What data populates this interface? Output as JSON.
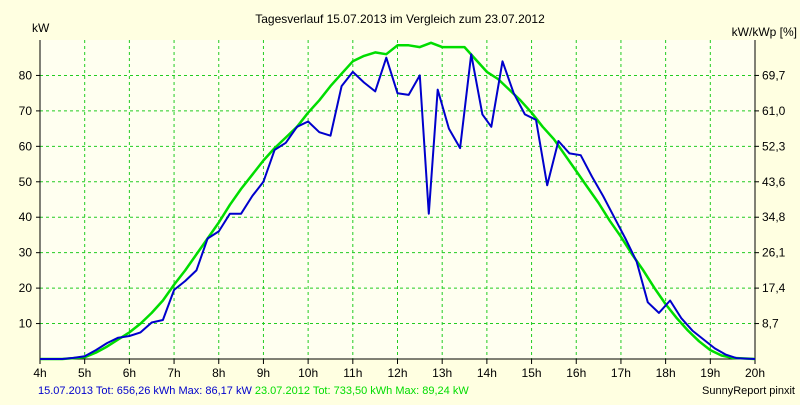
{
  "chart_data": {
    "type": "line",
    "title": "Tagesverlauf 15.07.2013 im Vergleich zum 23.07.2012",
    "ylabel_left": "kW",
    "ylabel_right": "kW/kWp [%]",
    "watermark": "SunnyReport pinxit",
    "xlim": [
      4,
      20
    ],
    "ylim": [
      0,
      90
    ],
    "x_ticks": [
      {
        "x": 4,
        "label": "4h"
      },
      {
        "x": 5,
        "label": "5h"
      },
      {
        "x": 6,
        "label": "6h"
      },
      {
        "x": 7,
        "label": "7h"
      },
      {
        "x": 8,
        "label": "8h"
      },
      {
        "x": 9,
        "label": "9h"
      },
      {
        "x": 10,
        "label": "10h"
      },
      {
        "x": 11,
        "label": "11h"
      },
      {
        "x": 12,
        "label": "12h"
      },
      {
        "x": 13,
        "label": "13h"
      },
      {
        "x": 14,
        "label": "14h"
      },
      {
        "x": 15,
        "label": "15h"
      },
      {
        "x": 16,
        "label": "16h"
      },
      {
        "x": 17,
        "label": "17h"
      },
      {
        "x": 18,
        "label": "18h"
      },
      {
        "x": 19,
        "label": "19h"
      },
      {
        "x": 20,
        "label": "20h"
      }
    ],
    "y_ticks_left": [
      {
        "y": 10,
        "label": "10"
      },
      {
        "y": 20,
        "label": "20"
      },
      {
        "y": 30,
        "label": "30"
      },
      {
        "y": 40,
        "label": "40"
      },
      {
        "y": 50,
        "label": "50"
      },
      {
        "y": 60,
        "label": "60"
      },
      {
        "y": 70,
        "label": "70"
      },
      {
        "y": 80,
        "label": "80"
      }
    ],
    "y_ticks_right": [
      {
        "y": 10,
        "label": "8,7"
      },
      {
        "y": 20,
        "label": "17,4"
      },
      {
        "y": 30,
        "label": "26,1"
      },
      {
        "y": 40,
        "label": "34,8"
      },
      {
        "y": 50,
        "label": "43,6"
      },
      {
        "y": 60,
        "label": "52,3"
      },
      {
        "y": 70,
        "label": "61,0"
      },
      {
        "y": 80,
        "label": "69,7"
      }
    ],
    "grid": true,
    "colors": {
      "background": "#ffffe1",
      "plot_background": "#fffff0",
      "grid": "#22cc22",
      "axis": "#000000"
    },
    "series": [
      {
        "name": "15.07.2013",
        "stats": "Tot: 656,26 kWh Max: 86,17 kW",
        "color": "#0000cc",
        "points": [
          [
            4.0,
            0
          ],
          [
            4.5,
            0
          ],
          [
            4.75,
            0.3
          ],
          [
            5.0,
            0.8
          ],
          [
            5.25,
            2.5
          ],
          [
            5.5,
            4.5
          ],
          [
            5.75,
            6
          ],
          [
            6.0,
            6.5
          ],
          [
            6.25,
            7.5
          ],
          [
            6.5,
            10.3
          ],
          [
            6.75,
            11
          ],
          [
            7.0,
            19.5
          ],
          [
            7.25,
            22
          ],
          [
            7.5,
            25
          ],
          [
            7.75,
            34
          ],
          [
            8.0,
            36
          ],
          [
            8.25,
            41
          ],
          [
            8.5,
            41
          ],
          [
            8.75,
            46
          ],
          [
            9.0,
            50
          ],
          [
            9.25,
            59
          ],
          [
            9.5,
            61
          ],
          [
            9.75,
            65.5
          ],
          [
            10.0,
            67
          ],
          [
            10.25,
            64
          ],
          [
            10.5,
            63
          ],
          [
            10.75,
            77
          ],
          [
            11.0,
            81
          ],
          [
            11.25,
            78
          ],
          [
            11.5,
            75.5
          ],
          [
            11.75,
            85
          ],
          [
            12.0,
            75
          ],
          [
            12.25,
            74.5
          ],
          [
            12.5,
            80
          ],
          [
            12.7,
            41
          ],
          [
            12.9,
            76
          ],
          [
            13.15,
            65
          ],
          [
            13.4,
            59.5
          ],
          [
            13.65,
            86
          ],
          [
            13.9,
            69
          ],
          [
            14.1,
            65.5
          ],
          [
            14.35,
            84
          ],
          [
            14.6,
            75
          ],
          [
            14.85,
            69
          ],
          [
            15.1,
            67.5
          ],
          [
            15.35,
            49
          ],
          [
            15.6,
            61.5
          ],
          [
            15.85,
            58
          ],
          [
            16.1,
            57.5
          ],
          [
            16.35,
            51.5
          ],
          [
            16.6,
            46
          ],
          [
            16.85,
            40
          ],
          [
            17.1,
            34
          ],
          [
            17.35,
            27.5
          ],
          [
            17.6,
            16
          ],
          [
            17.85,
            13
          ],
          [
            18.1,
            16.5
          ],
          [
            18.35,
            11.5
          ],
          [
            18.6,
            8
          ],
          [
            18.85,
            5.5
          ],
          [
            19.1,
            3
          ],
          [
            19.35,
            1.2
          ],
          [
            19.6,
            0.2
          ],
          [
            20.0,
            0
          ]
        ]
      },
      {
        "name": "23.07.2012",
        "stats": "Tot: 733,50 kWh Max: 89,24 kW",
        "color": "#00dd00",
        "points": [
          [
            4.0,
            0
          ],
          [
            4.5,
            0
          ],
          [
            5.0,
            0.5
          ],
          [
            5.25,
            1.8
          ],
          [
            5.5,
            3.5
          ],
          [
            5.75,
            5.5
          ],
          [
            6.0,
            7.5
          ],
          [
            6.25,
            10
          ],
          [
            6.5,
            13
          ],
          [
            6.75,
            16.5
          ],
          [
            7.0,
            21
          ],
          [
            7.25,
            25
          ],
          [
            7.5,
            29.5
          ],
          [
            7.75,
            34
          ],
          [
            8.0,
            38.5
          ],
          [
            8.25,
            43.5
          ],
          [
            8.5,
            48
          ],
          [
            8.75,
            52
          ],
          [
            9.0,
            56
          ],
          [
            9.25,
            59.5
          ],
          [
            9.5,
            62.5
          ],
          [
            9.75,
            65.5
          ],
          [
            10.0,
            69.5
          ],
          [
            10.25,
            73
          ],
          [
            10.5,
            77
          ],
          [
            10.75,
            80.5
          ],
          [
            11.0,
            84
          ],
          [
            11.25,
            85.5
          ],
          [
            11.5,
            86.5
          ],
          [
            11.75,
            86
          ],
          [
            12.0,
            88.5
          ],
          [
            12.25,
            88.5
          ],
          [
            12.5,
            88
          ],
          [
            12.75,
            89.2
          ],
          [
            13.0,
            88
          ],
          [
            13.25,
            88
          ],
          [
            13.5,
            88
          ],
          [
            13.75,
            84.5
          ],
          [
            14.0,
            81
          ],
          [
            14.25,
            79
          ],
          [
            14.5,
            76
          ],
          [
            14.75,
            73
          ],
          [
            15.0,
            69.5
          ],
          [
            15.25,
            65.5
          ],
          [
            15.5,
            62
          ],
          [
            15.75,
            57.5
          ],
          [
            16.0,
            53
          ],
          [
            16.25,
            48.5
          ],
          [
            16.5,
            44
          ],
          [
            16.75,
            39
          ],
          [
            17.0,
            34.5
          ],
          [
            17.25,
            29.5
          ],
          [
            17.5,
            25
          ],
          [
            17.75,
            20
          ],
          [
            18.0,
            15.5
          ],
          [
            18.25,
            11.5
          ],
          [
            18.5,
            8
          ],
          [
            18.75,
            5
          ],
          [
            19.0,
            2.5
          ],
          [
            19.25,
            1
          ],
          [
            19.5,
            0.3
          ],
          [
            20.0,
            0
          ]
        ]
      }
    ]
  }
}
